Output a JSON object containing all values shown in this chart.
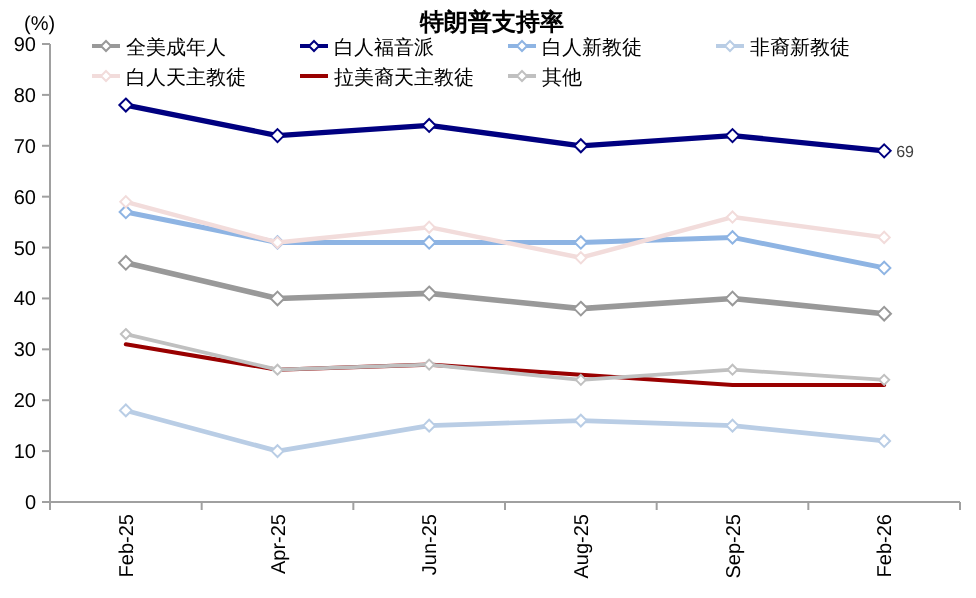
{
  "chart_data": {
    "type": "line",
    "title": "特朗普支持率",
    "ylabel": "(%)",
    "categories": [
      "Feb-25",
      "Apr-25",
      "Jun-25",
      "Aug-25",
      "Sep-25",
      "Feb-26"
    ],
    "series": [
      {
        "name": "全美成年人",
        "color": "#999999",
        "marker": "diamond",
        "values": [
          47,
          40,
          41,
          38,
          40,
          37
        ]
      },
      {
        "name": "白人福音派",
        "color": "#000080",
        "marker": "diamond",
        "values": [
          78,
          72,
          74,
          70,
          72,
          69
        ],
        "value_labels": [
          null,
          null,
          null,
          null,
          null,
          "69"
        ]
      },
      {
        "name": "白人新教徒",
        "color": "#8eb4e3",
        "marker": "diamond",
        "values": [
          57,
          51,
          51,
          51,
          52,
          46
        ]
      },
      {
        "name": "非裔新教徒",
        "color": "#b9cde5",
        "marker": "diamond",
        "values": [
          18,
          10,
          15,
          16,
          15,
          12
        ]
      },
      {
        "name": "白人天主教徒",
        "color": "#f2dcdb",
        "marker": "diamond",
        "values": [
          59,
          51,
          54,
          48,
          56,
          52
        ]
      },
      {
        "name": "拉美裔天主教徒",
        "color": "#990000",
        "marker": "none",
        "values": [
          31,
          26,
          27,
          25,
          23,
          23
        ]
      },
      {
        "name": "其他",
        "color": "#c0c0c0",
        "marker": "diamond",
        "values": [
          33,
          26,
          27,
          24,
          26,
          24
        ]
      }
    ],
    "ylim": [
      0,
      90
    ],
    "yticks": [
      0,
      10,
      20,
      30,
      40,
      50,
      60,
      70,
      80,
      90
    ],
    "legend": "top",
    "grid": false
  }
}
